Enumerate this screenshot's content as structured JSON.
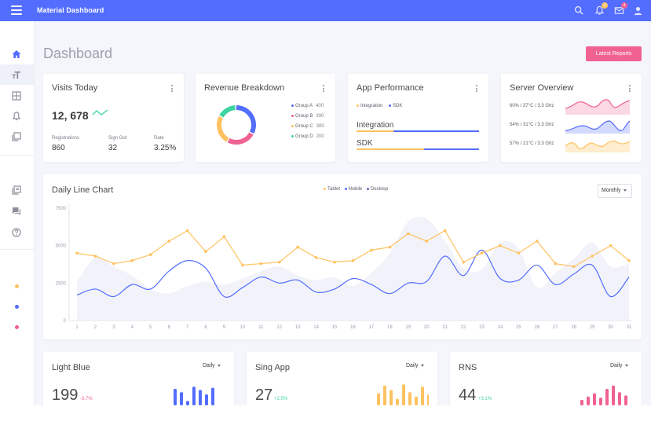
{
  "topbar": {
    "title": "Material Dashboard",
    "notifications_count": "4",
    "messages_count": "4",
    "icons": [
      "menu-icon",
      "search-icon",
      "bell-icon",
      "mail-icon",
      "person-icon"
    ],
    "color": "#536dfe"
  },
  "sidebar": {
    "items": [
      "home-icon",
      "typography-icon",
      "table-icon",
      "notifications-icon",
      "layers-icon",
      "library-icon",
      "forum-icon",
      "help-icon"
    ],
    "dots": [
      "#ffc260",
      "#536dfe",
      "#f06292"
    ]
  },
  "page": {
    "title": "Dashboard",
    "latest_reports": "Latest Reports"
  },
  "visits": {
    "title": "Visits Today",
    "value": "12, 678",
    "registrations_label": "Registrations",
    "registrations": "860",
    "signout_label": "Sign Out",
    "signout": "32",
    "rate_label": "Rate",
    "rate": "3.25%"
  },
  "revenue": {
    "title": "Revenue Breakdown",
    "groups": [
      {
        "label": "Group A",
        "value": "400",
        "color": "#536dfe"
      },
      {
        "label": "Group B",
        "value": "300",
        "color": "#f06292"
      },
      {
        "label": "Group C",
        "value": "300",
        "color": "#ffc260"
      },
      {
        "label": "Group D",
        "value": "200",
        "color": "#3cd4a0"
      }
    ]
  },
  "performance": {
    "title": "App Performance",
    "legend_integration": "Integration",
    "legend_sdk": "SDK",
    "integration_label": "Integration",
    "integration_progress": 0.3,
    "sdk_label": "SDK",
    "sdk_progress": 0.55
  },
  "server": {
    "title": "Server Overview",
    "rows": [
      {
        "label": "60% / 37°C / 3.3 Ghz",
        "color": "#f06292"
      },
      {
        "label": "54% / 31°C / 3.3 Ghz",
        "color": "#536dfe"
      },
      {
        "label": "57% / 21°C / 3.3 Ghz",
        "color": "#ffc260"
      }
    ]
  },
  "daily_chart": {
    "title": "Daily Line Chart",
    "legend_tablet": "Tablet",
    "legend_mobile": "Mobile",
    "legend_desktop": "Desktop",
    "range": "Monthly"
  },
  "chart_data": {
    "type": "line",
    "x": [
      1,
      2,
      3,
      4,
      5,
      6,
      7,
      8,
      9,
      10,
      11,
      12,
      13,
      14,
      15,
      16,
      17,
      18,
      19,
      20,
      21,
      22,
      23,
      24,
      25,
      26,
      27,
      28,
      29,
      30,
      31
    ],
    "y_ticks": [
      "0",
      "2500",
      "5000",
      "7500"
    ],
    "ylim": [
      0,
      7500
    ],
    "grid": false,
    "legend": "top-center",
    "series": [
      {
        "name": "Tablet",
        "color": "#ffc260",
        "values": [
          4500,
          4300,
          3800,
          4000,
          4400,
          5300,
          6000,
          4600,
          5600,
          3700,
          3800,
          3900,
          4900,
          4200,
          3900,
          4000,
          4700,
          4900,
          5800,
          5300,
          6000,
          3900,
          4500,
          5000,
          4500,
          5300,
          3800,
          3600,
          4300,
          5000,
          4000
        ]
      },
      {
        "name": "Mobile",
        "color": "#536dfe",
        "values": [
          1700,
          2100,
          1600,
          2400,
          2100,
          3300,
          4000,
          3500,
          1600,
          2200,
          2900,
          2500,
          2700,
          1900,
          2100,
          2800,
          2400,
          1800,
          2500,
          2600,
          4300,
          3000,
          4700,
          2800,
          2700,
          3700,
          2400,
          3100,
          3700,
          1600,
          2900
        ]
      },
      {
        "name": "Desktop",
        "color": "#e8eaf6",
        "values": [
          2600,
          4200,
          3600,
          3000,
          2100,
          1800,
          2300,
          2600,
          2400,
          2800,
          3300,
          3600,
          3000,
          2700,
          2900,
          2300,
          3200,
          4500,
          6600,
          6800,
          5300,
          3500,
          3400,
          5200,
          4800,
          2200,
          3200,
          4100,
          5200,
          3600,
          3800
        ]
      }
    ]
  },
  "bottom_cards": [
    {
      "title": "Light Blue",
      "range": "Daily",
      "value": "199",
      "delta": "-3.7%",
      "delta_color": "#f06292",
      "bar_color": "#536dfe",
      "bars": [
        0.75,
        0.6,
        0.2,
        0.85,
        0.7,
        0.5,
        0.8
      ]
    },
    {
      "title": "Sing App",
      "range": "Daily",
      "value": "27",
      "delta": "+2.5%",
      "delta_color": "#3cd4a0",
      "bar_color": "#ffc260",
      "bars": [
        0.55,
        0.9,
        0.7,
        0.3,
        0.95,
        0.6,
        0.4,
        0.85,
        0.5
      ]
    },
    {
      "title": "RNS",
      "range": "Daily",
      "value": "44",
      "delta": "+3.1%",
      "delta_color": "#3cd4a0",
      "bar_color": "#f06292",
      "bars": [
        0.25,
        0.4,
        0.55,
        0.35,
        0.75,
        0.9,
        0.6,
        0.45
      ]
    }
  ]
}
